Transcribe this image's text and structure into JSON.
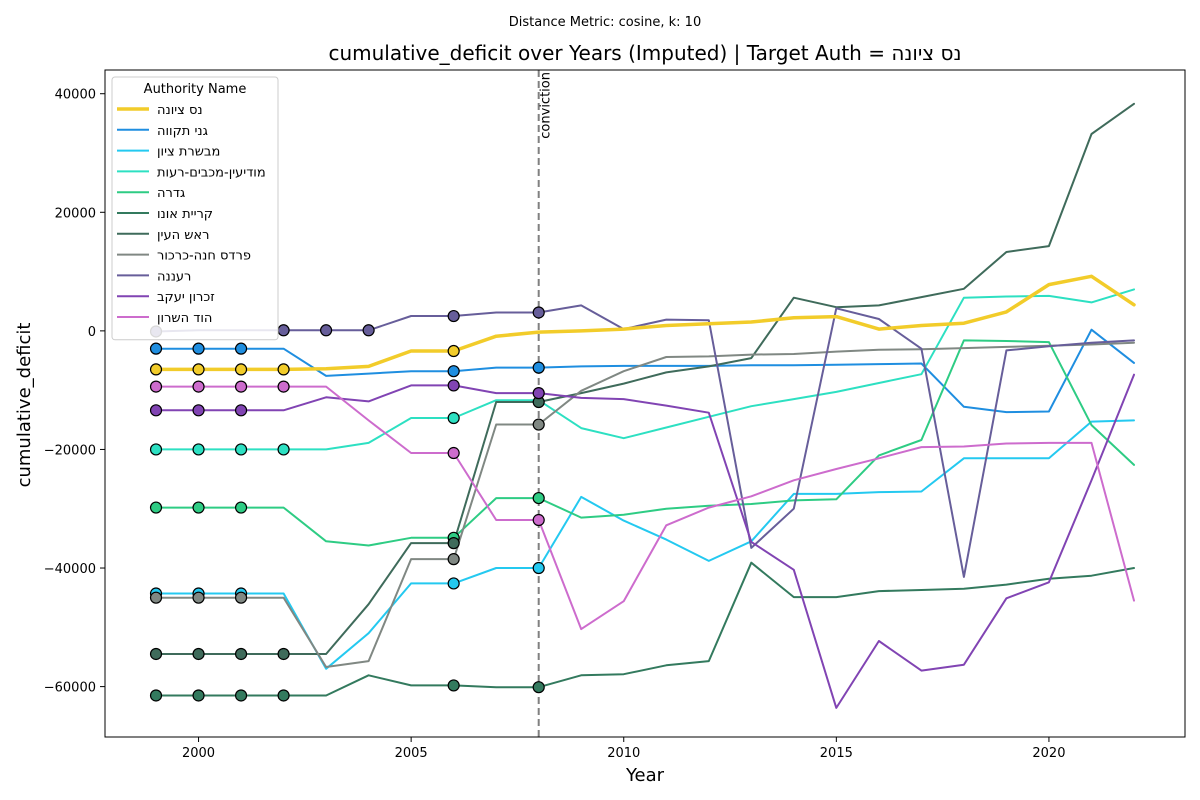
{
  "chart_data": {
    "type": "line",
    "suptitle": "Distance Metric: cosine, k: 10",
    "title": "cumulative_deficit over Years (Imputed) | Target Auth = נס ציונה",
    "xlabel": "Year",
    "ylabel": "cumulative_deficit",
    "xlim": [
      1997.8,
      2023.2
    ],
    "ylim": [
      -68500,
      44000
    ],
    "x_ticks": [
      2000,
      2005,
      2010,
      2015,
      2020
    ],
    "y_ticks": [
      -60000,
      -40000,
      -20000,
      0,
      20000,
      40000
    ],
    "x_tick_labels": [
      "2000",
      "2005",
      "2010",
      "2015",
      "2020"
    ],
    "y_tick_labels": [
      "−60000",
      "−40000",
      "−20000",
      "0",
      "20000",
      "40000"
    ],
    "grid": false,
    "legend": {
      "title": "Authority Name",
      "placement": "top-left"
    },
    "vline": {
      "x": 2008,
      "label": "conviction",
      "color": "#808080"
    },
    "x": [
      1999,
      2000,
      2001,
      2002,
      2003,
      2004,
      2005,
      2006,
      2007,
      2008,
      2009,
      2010,
      2011,
      2012,
      2013,
      2014,
      2015,
      2016,
      2017,
      2018,
      2019,
      2020,
      2021,
      2022
    ],
    "series": [
      {
        "name": "נס ציונה",
        "color": "#f2cc2a",
        "width": 3.5,
        "values": [
          -6500,
          -6500,
          -6500,
          -6500,
          -6400,
          -6000,
          -3400,
          -3400,
          -900,
          -200,
          0,
          300,
          900,
          1200,
          1500,
          2200,
          2400,
          300,
          900,
          1300,
          3200,
          7800,
          9200,
          4400
        ],
        "imputed": [
          1999,
          2000,
          2001,
          2002,
          2006
        ]
      },
      {
        "name": "גני תקווה",
        "color": "#1f8ee0",
        "width": 2,
        "values": [
          -3000,
          -3000,
          -3000,
          -3000,
          -7600,
          -7200,
          -6800,
          -6800,
          -6200,
          -6200,
          -6000,
          -5900,
          -5900,
          -5900,
          -5800,
          -5800,
          -5700,
          -5600,
          -5500,
          -12800,
          -13700,
          -13600,
          200,
          -5400
        ],
        "imputed": [
          1999,
          2000,
          2001,
          2006,
          2008
        ]
      },
      {
        "name": "מבשרת ציון",
        "color": "#24c9f0",
        "width": 2,
        "values": [
          -44300,
          -44300,
          -44300,
          -44300,
          -57000,
          -51000,
          -42600,
          -42600,
          -40000,
          -40000,
          -28000,
          -32000,
          -35200,
          -38800,
          -35500,
          -27500,
          -27500,
          -27200,
          -27100,
          -21500,
          -21500,
          -21500,
          -15300,
          -15100
        ],
        "imputed": [
          1999,
          2000,
          2001,
          2006,
          2008
        ]
      },
      {
        "name": "מודיעין-מכבים-רעות",
        "color": "#2de0c2",
        "width": 2,
        "values": [
          -20000,
          -20000,
          -20000,
          -20000,
          -20000,
          -18900,
          -14700,
          -14700,
          -11700,
          -11700,
          -16400,
          -18100,
          -16300,
          -14500,
          -12700,
          -11500,
          -10300,
          -8800,
          -7300,
          5600,
          5800,
          5900,
          4800,
          7000
        ],
        "imputed": [
          1999,
          2000,
          2001,
          2002,
          2006
        ]
      },
      {
        "name": "גדרה",
        "color": "#2ecc84",
        "width": 2,
        "values": [
          -29800,
          -29800,
          -29800,
          -29800,
          -35500,
          -36200,
          -34900,
          -34900,
          -28200,
          -28200,
          -31500,
          -31000,
          -30000,
          -29500,
          -29200,
          -28600,
          -28400,
          -21000,
          -18400,
          -1600,
          -1700,
          -1900,
          -15900,
          -22600
        ],
        "imputed": [
          1999,
          2000,
          2001,
          2006,
          2008
        ]
      },
      {
        "name": "קריית אונו",
        "color": "#337a5e",
        "width": 2,
        "values": [
          -61500,
          -61500,
          -61500,
          -61500,
          -61500,
          -58100,
          -59800,
          -59800,
          -60100,
          -60100,
          -58100,
          -57900,
          -56400,
          -55700,
          -39100,
          -44900,
          -44900,
          -43900,
          -43700,
          -43500,
          -42800,
          -41800,
          -41300,
          -40000
        ],
        "imputed": [
          1999,
          2000,
          2001,
          2002,
          2006,
          2008
        ]
      },
      {
        "name": "ראש העין",
        "color": "#3f6b5b",
        "width": 2,
        "values": [
          -54500,
          -54500,
          -54500,
          -54500,
          -54500,
          -46100,
          -35800,
          -35800,
          -12000,
          -12000,
          -10500,
          -8900,
          -7000,
          -6000,
          -4600,
          5600,
          4000,
          4300,
          5700,
          7100,
          13300,
          14300,
          33200,
          38300
        ],
        "imputed": [
          1999,
          2000,
          2001,
          2002,
          2006,
          2008
        ]
      },
      {
        "name": "פרדס חנה-כרכור",
        "color": "#808883",
        "width": 2,
        "values": [
          -45000,
          -45000,
          -45000,
          -45000,
          -56700,
          -55700,
          -38500,
          -38500,
          -15800,
          -15800,
          -10100,
          -6800,
          -4400,
          -4300,
          -4000,
          -3900,
          -3500,
          -3200,
          -3100,
          -2900,
          -2700,
          -2500,
          -2300,
          -2000
        ],
        "imputed": [
          1999,
          2000,
          2001,
          2006,
          2008
        ]
      },
      {
        "name": "רעננה",
        "color": "#675e9a",
        "width": 2,
        "values": [
          -100,
          100,
          100,
          100,
          100,
          100,
          2500,
          2500,
          3100,
          3100,
          4300,
          300,
          1900,
          1800,
          -36600,
          -30000,
          3800,
          2000,
          -3000,
          -41500,
          -3300,
          -2600,
          -2000,
          -1600
        ],
        "imputed": [
          1999,
          2002,
          2003,
          2004,
          2006,
          2008
        ]
      },
      {
        "name": "זכרון יעקב",
        "color": "#8144b3",
        "width": 2,
        "values": [
          -13400,
          -13400,
          -13400,
          -13400,
          -11200,
          -11900,
          -9200,
          -9200,
          -10500,
          -10500,
          -11300,
          -11500,
          -12600,
          -13800,
          -35600,
          -40300,
          -63600,
          -52300,
          -57300,
          -56300,
          -45100,
          -42400,
          -25200,
          -7400
        ],
        "imputed": [
          1999,
          2000,
          2001,
          2006,
          2008
        ]
      },
      {
        "name": "הוד השרון",
        "color": "#cd6ccd",
        "width": 2,
        "values": [
          -9400,
          -9400,
          -9400,
          -9400,
          -9400,
          -15100,
          -20600,
          -20600,
          -31900,
          -31900,
          -50300,
          -45600,
          -32800,
          -29800,
          -27900,
          -25200,
          -23300,
          -21500,
          -19600,
          -19500,
          -19000,
          -18900,
          -18900,
          -45500
        ],
        "imputed": [
          1999,
          2000,
          2001,
          2002,
          2006,
          2008
        ]
      }
    ]
  }
}
